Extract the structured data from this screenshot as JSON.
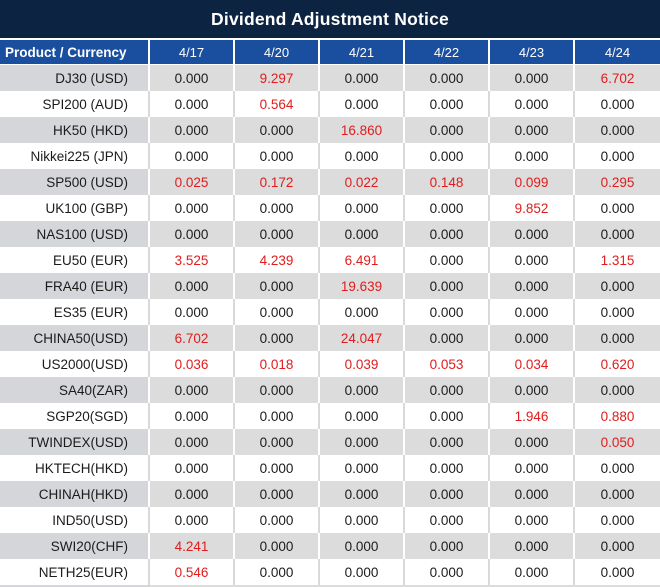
{
  "title": "Dividend Adjustment Notice",
  "colors": {
    "navy": "#0d2342",
    "headerblue": "#1a4f9f",
    "col1gray": "#d5d6da",
    "datagray": "#dcdcdc",
    "red": "#e01c1c"
  },
  "table": {
    "header": [
      "Product / Currency",
      "4/17",
      "4/20",
      "4/21",
      "4/22",
      "4/23",
      "4/24"
    ],
    "rows": [
      {
        "product": "DJ30 (USD)",
        "values": [
          "0.000",
          "9.297",
          "0.000",
          "0.000",
          "0.000",
          "6.702"
        ],
        "red": [
          false,
          true,
          false,
          false,
          false,
          true
        ]
      },
      {
        "product": "SPI200 (AUD)",
        "values": [
          "0.000",
          "0.564",
          "0.000",
          "0.000",
          "0.000",
          "0.000"
        ],
        "red": [
          false,
          true,
          false,
          false,
          false,
          false
        ]
      },
      {
        "product": "HK50 (HKD)",
        "values": [
          "0.000",
          "0.000",
          "16.860",
          "0.000",
          "0.000",
          "0.000"
        ],
        "red": [
          false,
          false,
          true,
          false,
          false,
          false
        ]
      },
      {
        "product": "Nikkei225 (JPN)",
        "values": [
          "0.000",
          "0.000",
          "0.000",
          "0.000",
          "0.000",
          "0.000"
        ],
        "red": [
          false,
          false,
          false,
          false,
          false,
          false
        ]
      },
      {
        "product": "SP500 (USD)",
        "values": [
          "0.025",
          "0.172",
          "0.022",
          "0.148",
          "0.099",
          "0.295"
        ],
        "red": [
          true,
          true,
          true,
          true,
          true,
          true
        ]
      },
      {
        "product": "UK100 (GBP)",
        "values": [
          "0.000",
          "0.000",
          "0.000",
          "0.000",
          "9.852",
          "0.000"
        ],
        "red": [
          false,
          false,
          false,
          false,
          true,
          false
        ]
      },
      {
        "product": "NAS100 (USD)",
        "values": [
          "0.000",
          "0.000",
          "0.000",
          "0.000",
          "0.000",
          "0.000"
        ],
        "red": [
          false,
          false,
          false,
          false,
          false,
          false
        ]
      },
      {
        "product": "EU50 (EUR)",
        "values": [
          "3.525",
          "4.239",
          "6.491",
          "0.000",
          "0.000",
          "1.315"
        ],
        "red": [
          true,
          true,
          true,
          false,
          false,
          true
        ]
      },
      {
        "product": "FRA40 (EUR)",
        "values": [
          "0.000",
          "0.000",
          "19.639",
          "0.000",
          "0.000",
          "0.000"
        ],
        "red": [
          false,
          false,
          true,
          false,
          false,
          false
        ]
      },
      {
        "product": "ES35 (EUR)",
        "values": [
          "0.000",
          "0.000",
          "0.000",
          "0.000",
          "0.000",
          "0.000"
        ],
        "red": [
          false,
          false,
          false,
          false,
          false,
          false
        ]
      },
      {
        "product": "CHINA50(USD)",
        "values": [
          "6.702",
          "0.000",
          "24.047",
          "0.000",
          "0.000",
          "0.000"
        ],
        "red": [
          true,
          false,
          true,
          false,
          false,
          false
        ]
      },
      {
        "product": "US2000(USD)",
        "values": [
          "0.036",
          "0.018",
          "0.039",
          "0.053",
          "0.034",
          "0.620"
        ],
        "red": [
          true,
          true,
          true,
          true,
          true,
          true
        ]
      },
      {
        "product": "SA40(ZAR)",
        "values": [
          "0.000",
          "0.000",
          "0.000",
          "0.000",
          "0.000",
          "0.000"
        ],
        "red": [
          false,
          false,
          false,
          false,
          false,
          false
        ]
      },
      {
        "product": "SGP20(SGD)",
        "values": [
          "0.000",
          "0.000",
          "0.000",
          "0.000",
          "1.946",
          "0.880"
        ],
        "red": [
          false,
          false,
          false,
          false,
          true,
          true
        ]
      },
      {
        "product": "TWINDEX(USD)",
        "values": [
          "0.000",
          "0.000",
          "0.000",
          "0.000",
          "0.000",
          "0.050"
        ],
        "red": [
          false,
          false,
          false,
          false,
          false,
          true
        ]
      },
      {
        "product": "HKTECH(HKD)",
        "values": [
          "0.000",
          "0.000",
          "0.000",
          "0.000",
          "0.000",
          "0.000"
        ],
        "red": [
          false,
          false,
          false,
          false,
          false,
          false
        ]
      },
      {
        "product": "CHINAH(HKD)",
        "values": [
          "0.000",
          "0.000",
          "0.000",
          "0.000",
          "0.000",
          "0.000"
        ],
        "red": [
          false,
          false,
          false,
          false,
          false,
          false
        ]
      },
      {
        "product": "IND50(USD)",
        "values": [
          "0.000",
          "0.000",
          "0.000",
          "0.000",
          "0.000",
          "0.000"
        ],
        "red": [
          false,
          false,
          false,
          false,
          false,
          false
        ]
      },
      {
        "product": "SWI20(CHF)",
        "values": [
          "4.241",
          "0.000",
          "0.000",
          "0.000",
          "0.000",
          "0.000"
        ],
        "red": [
          true,
          false,
          false,
          false,
          false,
          false
        ]
      },
      {
        "product": "NETH25(EUR)",
        "values": [
          "0.546",
          "0.000",
          "0.000",
          "0.000",
          "0.000",
          "0.000"
        ],
        "red": [
          true,
          false,
          false,
          false,
          false,
          false
        ]
      }
    ]
  }
}
